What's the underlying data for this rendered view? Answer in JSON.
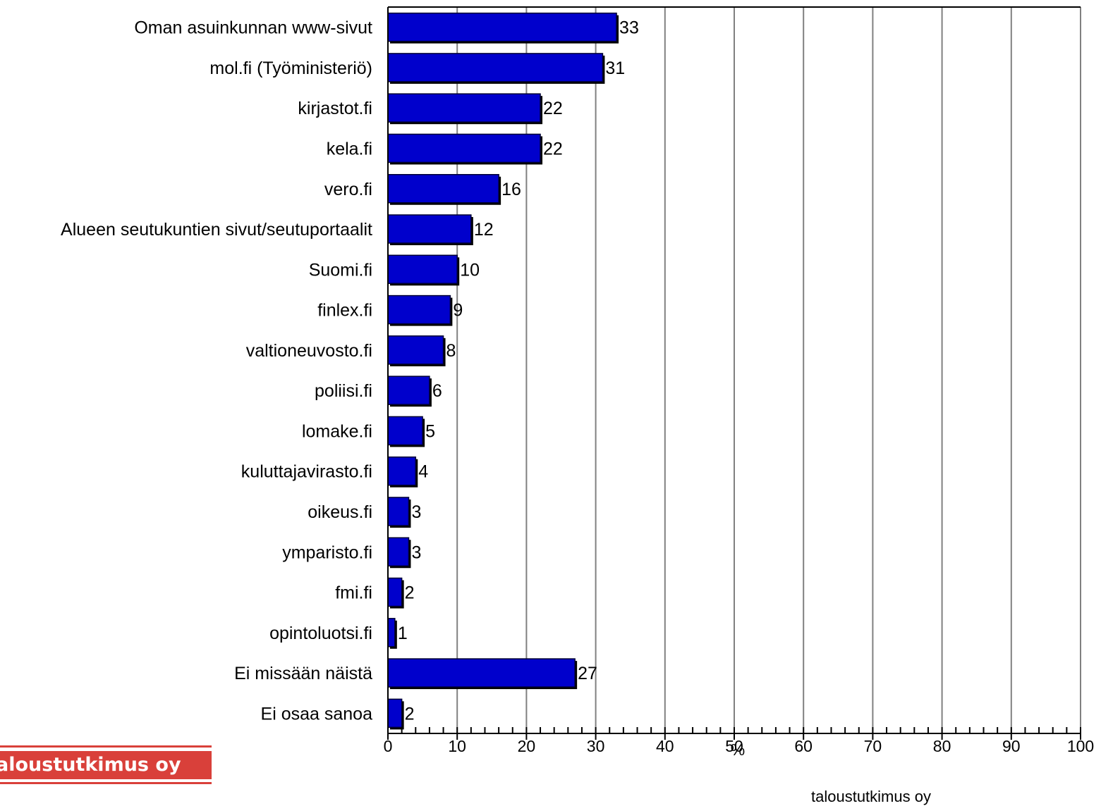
{
  "chart_data": {
    "type": "bar",
    "orientation": "horizontal",
    "categories": [
      "Oman asuinkunnan www-sivut",
      "mol.fi (Työministeriö)",
      "kirjastot.fi",
      "kela.fi",
      "vero.fi",
      "Alueen seutukuntien sivut/seutuportaalit",
      "Suomi.fi",
      "finlex.fi",
      "valtioneuvosto.fi",
      "poliisi.fi",
      "lomake.fi",
      "kuluttajavirasto.fi",
      "oikeus.fi",
      "ymparisto.fi",
      "fmi.fi",
      "opintoluotsi.fi",
      "Ei missään näistä",
      "Ei osaa sanoa"
    ],
    "values": [
      33,
      31,
      22,
      22,
      16,
      12,
      10,
      9,
      8,
      6,
      5,
      4,
      3,
      3,
      2,
      1,
      27,
      2
    ],
    "xlabel": "%",
    "xlim": [
      0,
      100
    ],
    "xticks": [
      0,
      10,
      20,
      30,
      40,
      50,
      60,
      70,
      80,
      90,
      100
    ],
    "minor_tick_step": 2,
    "grid": "vertical",
    "bar_color": "#0000CC",
    "bar_edge_color": "#000033",
    "grid_color": "#808080",
    "data_labels": true
  },
  "logo": {
    "text": "aloustutkimus oy",
    "color": "#D9403A"
  },
  "footer": {
    "text": "taloustutkimus oy"
  }
}
